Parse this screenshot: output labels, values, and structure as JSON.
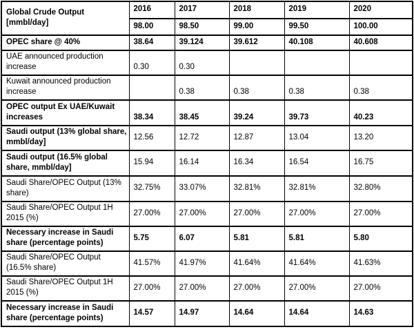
{
  "colors": {
    "border": "#000000",
    "text": "#000000",
    "background": "#ffffff"
  },
  "chart_data": {
    "type": "table",
    "title": "Global Crude Output scenario table, 2016-2020",
    "corner_label": "Global Crude Output\n[mmbl/day]",
    "columns": [
      "2016",
      "2017",
      "2018",
      "2019",
      "2020"
    ],
    "header_row": {
      "values": [
        "98.00",
        "98.50",
        "99.00",
        "99.50",
        "100.00"
      ],
      "bold": true
    },
    "rows": [
      {
        "label": "OPEC share @ 40%",
        "values": [
          "38.64",
          "39.124",
          "39.612",
          "40.108",
          "40.608"
        ],
        "bold_label": true,
        "bold_values": true,
        "values_bottom": false
      },
      {
        "label": "UAE announced production\nincrease",
        "values": [
          "0.30",
          "0.30",
          "",
          "",
          ""
        ],
        "bold_label": false,
        "bold_values": false,
        "values_bottom": true
      },
      {
        "label": "Kuwait announced production\nincrease",
        "values": [
          "",
          "0.38",
          "0.38",
          "0.38",
          "0.38"
        ],
        "bold_label": false,
        "bold_values": false,
        "values_bottom": true
      },
      {
        "label": "OPEC output Ex UAE/Kuwait\nincreases",
        "values": [
          "38.34",
          "38.45",
          "39.24",
          "39.73",
          "40.23"
        ],
        "bold_label": true,
        "bold_values": true,
        "values_bottom": true
      },
      {
        "label": "Saudi output (13% global share,\nmmbl/day]",
        "values": [
          "12.56",
          "12.72",
          "12.87",
          "13.04",
          "13.20"
        ],
        "bold_label": true,
        "bold_values": false,
        "values_bottom": false
      },
      {
        "label": "Saudi output (16.5% global\nshare, mmbl/day]",
        "values": [
          "15.94",
          "16.14",
          "16.34",
          "16.54",
          "16.75"
        ],
        "bold_label": true,
        "bold_values": false,
        "values_bottom": false
      },
      {
        "label": "Saudi Share/OPEC Output (13%\nshare)",
        "values": [
          "32.75%",
          "33.07%",
          "32.81%",
          "32.81%",
          "32.80%"
        ],
        "bold_label": false,
        "bold_values": false,
        "values_bottom": false
      },
      {
        "label": "Saudi Share/OPEC Output 1H\n2015 (%)",
        "values": [
          "27.00%",
          "27.00%",
          "27.00%",
          "27.00%",
          "27.00%"
        ],
        "bold_label": false,
        "bold_values": false,
        "values_bottom": false
      },
      {
        "label": "Necessary increase in Saudi\nshare (percentage points)",
        "values": [
          "5.75",
          "6.07",
          "5.81",
          "5.81",
          "5.80"
        ],
        "bold_label": true,
        "bold_values": true,
        "values_bottom": false
      },
      {
        "label": "Saudi Share/OPEC Output\n(16.5% share)",
        "values": [
          "41.57%",
          "41.97%",
          "41.64%",
          "41.64%",
          "41.63%"
        ],
        "bold_label": false,
        "bold_values": false,
        "values_bottom": false
      },
      {
        "label": "Saudi Share/OPEC Output 1H\n2015 (%)",
        "values": [
          "27.00%",
          "27.00%",
          "27.00%",
          "27.00%",
          "27.00%"
        ],
        "bold_label": false,
        "bold_values": false,
        "values_bottom": false
      },
      {
        "label": "Necessary increase in Saudi\nshare (percentage points)",
        "values": [
          "14.57",
          "14.97",
          "14.64",
          "14.64",
          "14.63"
        ],
        "bold_label": true,
        "bold_values": true,
        "values_bottom": false
      }
    ]
  }
}
